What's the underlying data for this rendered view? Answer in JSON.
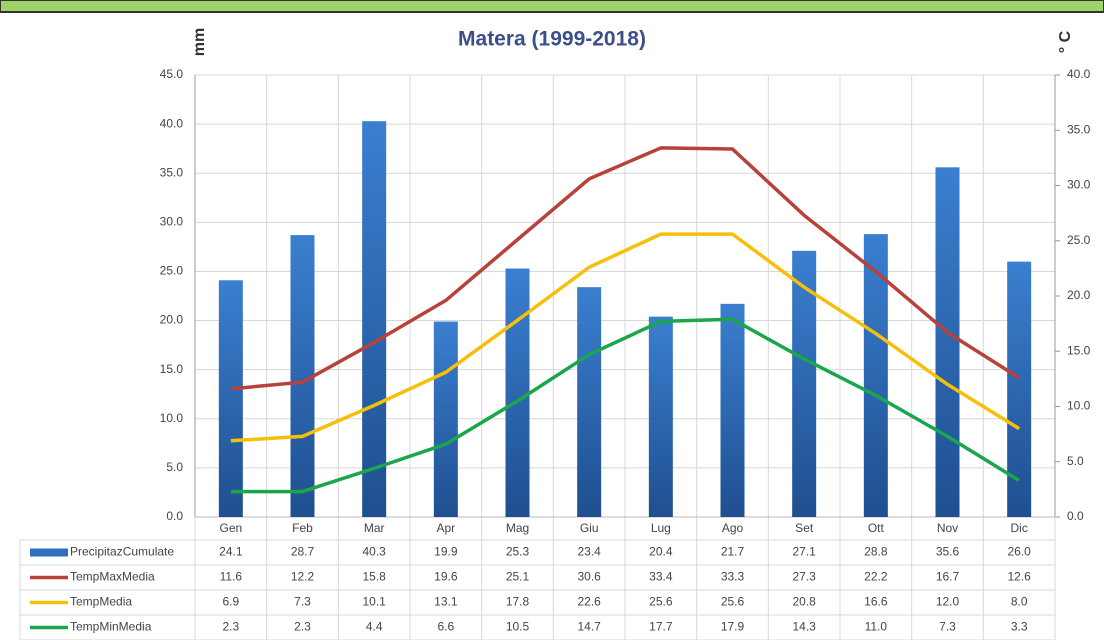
{
  "chart_data": {
    "type": "bar",
    "title": "Matera (1999-2018)",
    "y_label": "mm",
    "y2_label": "° C",
    "categories": [
      "Gen",
      "Feb",
      "Mar",
      "Apr",
      "Mag",
      "Giu",
      "Lug",
      "Ago",
      "Set",
      "Ott",
      "Nov",
      "Dic"
    ],
    "ylim": [
      0,
      45
    ],
    "yticks": [
      {
        "value": 0,
        "label": "0.0"
      },
      {
        "value": 5,
        "label": "5.0"
      },
      {
        "value": 10,
        "label": "10.0"
      },
      {
        "value": 15,
        "label": "15.0"
      },
      {
        "value": 20,
        "label": "20.0"
      },
      {
        "value": 25,
        "label": "25.0"
      },
      {
        "value": 30,
        "label": "30.0"
      },
      {
        "value": 35,
        "label": "35.0"
      },
      {
        "value": 40,
        "label": "40.0"
      },
      {
        "value": 45,
        "label": "45.0"
      }
    ],
    "y2lim": [
      0,
      40
    ],
    "y2ticks": [
      {
        "value": 0,
        "label": "0.0"
      },
      {
        "value": 5,
        "label": "5.0"
      },
      {
        "value": 10,
        "label": "10.0"
      },
      {
        "value": 15,
        "label": "15.0"
      },
      {
        "value": 20,
        "label": "20.0"
      },
      {
        "value": 25,
        "label": "25.0"
      },
      {
        "value": 30,
        "label": "30.0"
      },
      {
        "value": 35,
        "label": "35.0"
      },
      {
        "value": 40,
        "label": "40.0"
      }
    ],
    "grid": true,
    "series": [
      {
        "name": "PrecipitazCumulate",
        "type": "bar",
        "color": "#2f6fbf",
        "values": [
          24.1,
          28.7,
          40.3,
          19.9,
          25.3,
          23.4,
          20.4,
          21.7,
          27.1,
          28.8,
          35.6,
          26
        ],
        "value_labels": [
          "24.1",
          "28.7",
          "40.3",
          "19.9",
          "25.3",
          "23.4",
          "20.4",
          "21.7",
          "27.1",
          "28.8",
          "35.6",
          "26.0"
        ]
      },
      {
        "name": "TempMaxMedia",
        "type": "line",
        "axis": "y2",
        "color": "#b8413a",
        "values": [
          11.6,
          12.2,
          15.8,
          19.6,
          25.1,
          30.6,
          33.4,
          33.3,
          27.3,
          22.2,
          16.7,
          12.6
        ],
        "value_labels": [
          "11.6",
          "12.2",
          "15.8",
          "19.6",
          "25.1",
          "30.6",
          "33.4",
          "33.3",
          "27.3",
          "22.2",
          "16.7",
          "12.6"
        ]
      },
      {
        "name": "TempMedia",
        "type": "line",
        "axis": "y2",
        "color": "#f6bf0a",
        "values": [
          6.9,
          7.3,
          10.1,
          13.1,
          17.8,
          22.6,
          25.6,
          25.6,
          20.8,
          16.6,
          12,
          8
        ],
        "value_labels": [
          "6.9",
          "7.3",
          "10.1",
          "13.1",
          "17.8",
          "22.6",
          "25.6",
          "25.6",
          "20.8",
          "16.6",
          "12.0",
          "8.0"
        ]
      },
      {
        "name": "TempMinMedia",
        "type": "line",
        "axis": "y2",
        "color": "#1aa64a",
        "values": [
          2.3,
          2.3,
          4.4,
          6.6,
          10.5,
          14.7,
          17.7,
          17.9,
          14.3,
          11,
          7.3,
          3.3
        ],
        "value_labels": [
          "2.3",
          "2.3",
          "4.4",
          "6.6",
          "10.5",
          "14.7",
          "17.7",
          "17.9",
          "14.3",
          "11.0",
          "7.3",
          "3.3"
        ]
      }
    ]
  }
}
